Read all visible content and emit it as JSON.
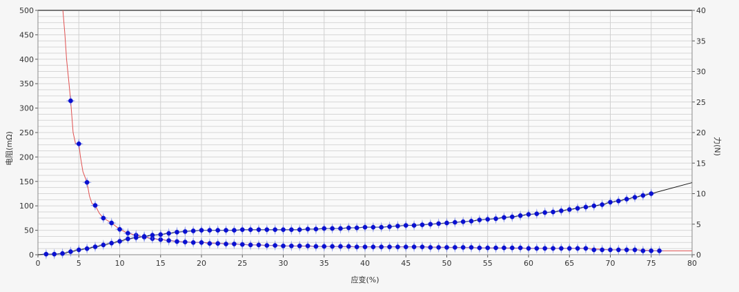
{
  "chart_data": {
    "type": "line",
    "xlabel": "应变(%)",
    "ylabel_left": "电阻(mΩ)",
    "ylabel_right": "力(N)",
    "xlim": [
      0,
      80
    ],
    "ylim_left": [
      0,
      500
    ],
    "ylim_right": [
      0,
      40
    ],
    "xticks": [
      0,
      5,
      10,
      15,
      20,
      25,
      30,
      35,
      40,
      45,
      50,
      55,
      60,
      65,
      70,
      75,
      80
    ],
    "yticks_left": [
      0,
      50,
      100,
      150,
      200,
      250,
      300,
      350,
      400,
      450,
      500
    ],
    "yticks_right": [
      0,
      5,
      10,
      15,
      20,
      25,
      30,
      35,
      40
    ],
    "grid": true,
    "colors": {
      "resistance_line": "#e05050",
      "force_line": "#111111",
      "marker": "#0a10d0"
    },
    "series": [
      {
        "axis": "left",
        "line": [
          [
            3.05,
            500
          ],
          [
            3.3,
            450
          ],
          [
            3.5,
            400
          ],
          [
            3.8,
            350
          ],
          [
            4,
            315
          ],
          [
            4.3,
            250
          ],
          [
            4.6,
            227
          ],
          [
            5,
            227
          ],
          [
            5.2,
            200
          ],
          [
            5.5,
            170
          ],
          [
            6,
            148
          ],
          [
            6.3,
            120
          ],
          [
            6.6,
            105
          ],
          [
            7,
            101
          ],
          [
            7.5,
            85
          ],
          [
            8,
            75
          ],
          [
            9,
            65
          ],
          [
            10,
            52
          ],
          [
            11,
            44
          ],
          [
            12,
            40
          ],
          [
            13,
            36
          ],
          [
            14,
            33
          ],
          [
            15,
            31
          ],
          [
            16,
            29
          ],
          [
            18,
            26
          ],
          [
            20,
            25
          ],
          [
            25,
            21
          ],
          [
            30,
            18
          ],
          [
            35,
            17
          ],
          [
            40,
            16
          ],
          [
            47,
            16
          ],
          [
            50,
            15
          ],
          [
            55,
            14
          ],
          [
            60,
            13
          ],
          [
            67,
            13
          ],
          [
            70,
            10
          ],
          [
            73,
            10
          ],
          [
            76,
            8
          ],
          [
            80,
            8
          ]
        ],
        "markers_x": [
          4,
          5,
          6,
          7,
          8,
          9,
          10,
          11,
          12,
          13,
          14,
          15,
          16,
          17,
          18,
          19,
          20,
          21,
          22,
          23,
          24,
          25,
          26,
          27,
          28,
          29,
          30,
          31,
          32,
          33,
          34,
          35,
          36,
          37,
          38,
          39,
          40,
          41,
          42,
          43,
          44,
          45,
          46,
          47,
          48,
          49,
          50,
          51,
          52,
          53,
          54,
          55,
          56,
          57,
          58,
          59,
          60,
          61,
          62,
          63,
          64,
          65,
          66,
          67,
          68,
          69,
          70,
          71,
          72,
          73,
          74,
          75,
          76
        ],
        "markers_y": [
          315,
          227,
          148,
          101,
          75,
          65,
          52,
          44,
          40,
          36,
          33,
          31,
          29,
          27,
          26,
          25,
          25,
          23,
          23,
          22,
          22,
          21,
          20,
          20,
          19,
          19,
          18,
          18,
          18,
          18,
          17,
          17,
          17,
          17,
          17,
          16,
          16,
          16,
          16,
          16,
          16,
          16,
          16,
          16,
          15,
          15,
          15,
          15,
          15,
          15,
          14,
          14,
          14,
          14,
          14,
          14,
          13,
          13,
          13,
          13,
          13,
          13,
          13,
          13,
          10,
          10,
          10,
          10,
          10,
          10,
          8,
          8,
          8
        ]
      },
      {
        "axis": "right",
        "line": [
          [
            0,
            0
          ],
          [
            1,
            0.1
          ],
          [
            2,
            0.1
          ],
          [
            3,
            0.2
          ],
          [
            75,
            10.0
          ],
          [
            80,
            11.8
          ]
        ],
        "markers_x": [
          1,
          2,
          3,
          4,
          5,
          6,
          7,
          8,
          9,
          10,
          11,
          12,
          13,
          14,
          15,
          16,
          17,
          18,
          19,
          20,
          21,
          22,
          23,
          24,
          25,
          26,
          27,
          28,
          29,
          30,
          31,
          32,
          33,
          34,
          35,
          36,
          37,
          38,
          39,
          40,
          41,
          42,
          43,
          44,
          45,
          46,
          47,
          48,
          49,
          50,
          51,
          52,
          53,
          54,
          55,
          56,
          57,
          58,
          59,
          60,
          61,
          62,
          63,
          64,
          65,
          66,
          67,
          68,
          69,
          70,
          71,
          72,
          73,
          74,
          75
        ],
        "markers_y": [
          0.1,
          0.1,
          0.2,
          0.5,
          0.8,
          1.0,
          1.3,
          1.6,
          1.9,
          2.2,
          2.6,
          2.8,
          3.0,
          3.2,
          3.3,
          3.5,
          3.7,
          3.8,
          3.9,
          4.0,
          4.0,
          4.0,
          4.0,
          4.0,
          4.1,
          4.1,
          4.1,
          4.1,
          4.1,
          4.1,
          4.1,
          4.1,
          4.2,
          4.2,
          4.3,
          4.3,
          4.3,
          4.4,
          4.4,
          4.5,
          4.5,
          4.5,
          4.6,
          4.7,
          4.8,
          4.8,
          4.9,
          5.0,
          5.1,
          5.2,
          5.3,
          5.4,
          5.5,
          5.7,
          5.8,
          5.9,
          6.1,
          6.2,
          6.4,
          6.6,
          6.7,
          6.9,
          7.0,
          7.2,
          7.4,
          7.6,
          7.8,
          8.0,
          8.2,
          8.6,
          8.8,
          9.1,
          9.4,
          9.7,
          10.0
        ]
      }
    ]
  }
}
